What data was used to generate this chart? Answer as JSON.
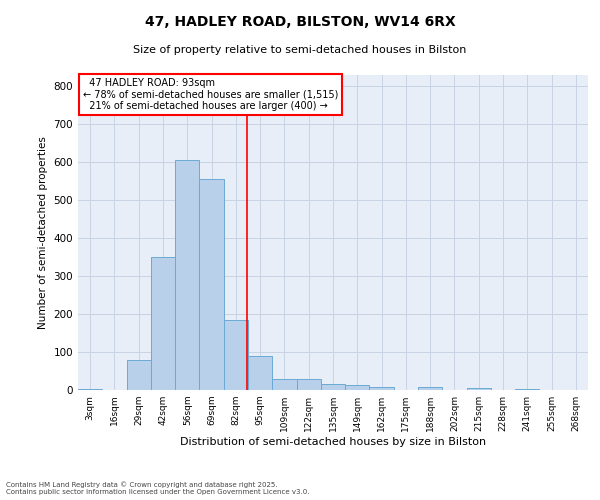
{
  "title": "47, HADLEY ROAD, BILSTON, WV14 6RX",
  "subtitle": "Size of property relative to semi-detached houses in Bilston",
  "xlabel": "Distribution of semi-detached houses by size in Bilston",
  "ylabel": "Number of semi-detached properties",
  "bin_labels": [
    "3sqm",
    "16sqm",
    "29sqm",
    "42sqm",
    "56sqm",
    "69sqm",
    "82sqm",
    "95sqm",
    "109sqm",
    "122sqm",
    "135sqm",
    "149sqm",
    "162sqm",
    "175sqm",
    "188sqm",
    "202sqm",
    "215sqm",
    "228sqm",
    "241sqm",
    "255sqm",
    "268sqm"
  ],
  "bar_values": [
    3,
    0,
    80,
    350,
    607,
    557,
    185,
    90,
    28,
    28,
    15,
    13,
    8,
    0,
    8,
    0,
    5,
    0,
    3,
    0,
    0
  ],
  "bar_color": "#b8d0ea",
  "bar_edgecolor": "#6aaad4",
  "vline_x_index": 6.45,
  "vline_color": "red",
  "annotation_box_color": "red",
  "ylim": [
    0,
    830
  ],
  "yticks": [
    0,
    100,
    200,
    300,
    400,
    500,
    600,
    700,
    800
  ],
  "grid_color": "#c8d4e4",
  "bg_color": "#e8eef8",
  "footer_line1": "Contains HM Land Registry data © Crown copyright and database right 2025.",
  "footer_line2": "Contains public sector information licensed under the Open Government Licence v3.0.",
  "property_label": "47 HADLEY ROAD: 93sqm",
  "pct_smaller": 78,
  "pct_smaller_count": "1,515",
  "pct_larger": 21,
  "pct_larger_count": "400"
}
